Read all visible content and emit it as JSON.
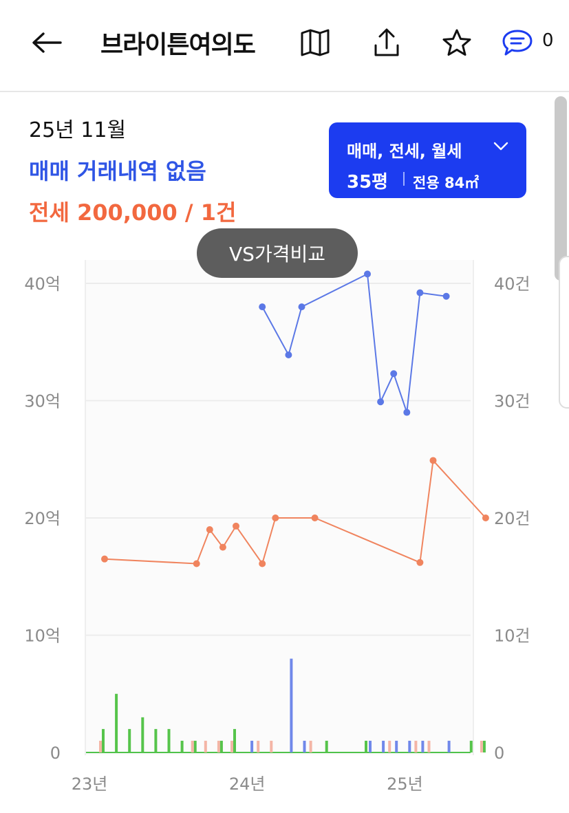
{
  "header": {
    "back_icon": "back-arrow-icon",
    "title": "브라이튼여의도",
    "icons": [
      "map-icon",
      "share-icon",
      "star-icon",
      "comment-icon"
    ],
    "comment_count": "0"
  },
  "summary": {
    "date": "25년 11월",
    "sale_status": "매매 거래내역 없음",
    "rent_line": "전세 200,000 / 1건"
  },
  "filter": {
    "types": "매매, 전세, 월세",
    "size": "35평",
    "area": "전용 84㎡"
  },
  "vs_button": "VS가격비교",
  "colors": {
    "sale": "#5b78e6",
    "jeonse": "#f0845e",
    "wolse": "#56c44b",
    "accent": "#1c3cf0"
  },
  "chart_data": {
    "type": "line",
    "x_ticks": [
      "23년",
      "24년",
      "25년"
    ],
    "y_left_ticks": [
      "0",
      "10억",
      "20억",
      "30억",
      "40억"
    ],
    "y_right_ticks": [
      "0",
      "10건",
      "20건",
      "30건",
      "40건"
    ],
    "y_left_range": [
      0,
      40
    ],
    "y_right_range": [
      0,
      40
    ],
    "series": [
      {
        "key": "sale",
        "points": [
          {
            "x": "2024-01",
            "y": 38.0
          },
          {
            "x": "2024-03",
            "y": 33.9
          },
          {
            "x": "2024-04",
            "y": 38.0
          },
          {
            "x": "2024-09",
            "y": 40.8
          },
          {
            "x": "2024-10",
            "y": 29.9
          },
          {
            "x": "2024-11",
            "y": 32.3
          },
          {
            "x": "2024-12",
            "y": 29.0
          },
          {
            "x": "2025-01",
            "y": 39.2
          },
          {
            "x": "2025-03",
            "y": 38.9
          }
        ]
      },
      {
        "key": "jeonse",
        "points": [
          {
            "x": "2023-01",
            "y": 16.5
          },
          {
            "x": "2023-08",
            "y": 16.1
          },
          {
            "x": "2023-09",
            "y": 19.0
          },
          {
            "x": "2023-10",
            "y": 17.5
          },
          {
            "x": "2023-11",
            "y": 19.3
          },
          {
            "x": "2024-01",
            "y": 16.1
          },
          {
            "x": "2024-02",
            "y": 20.0
          },
          {
            "x": "2024-05",
            "y": 20.0
          },
          {
            "x": "2025-01",
            "y": 16.2
          },
          {
            "x": "2025-02",
            "y": 24.9
          },
          {
            "x": "2025-06",
            "y": 20.0
          }
        ]
      }
    ],
    "volume": [
      {
        "series": "wolse",
        "x": "2023-01",
        "count": 2
      },
      {
        "series": "jeonse",
        "x": "2023-01",
        "count": 1
      },
      {
        "series": "wolse",
        "x": "2023-02",
        "count": 5
      },
      {
        "series": "wolse",
        "x": "2023-03",
        "count": 2
      },
      {
        "series": "wolse",
        "x": "2023-04",
        "count": 3
      },
      {
        "series": "wolse",
        "x": "2023-05",
        "count": 2
      },
      {
        "series": "wolse",
        "x": "2023-06",
        "count": 2
      },
      {
        "series": "wolse",
        "x": "2023-07",
        "count": 1
      },
      {
        "series": "wolse",
        "x": "2023-08",
        "count": 1
      },
      {
        "series": "jeonse",
        "x": "2023-08",
        "count": 1
      },
      {
        "series": "jeonse",
        "x": "2023-09",
        "count": 1
      },
      {
        "series": "jeonse",
        "x": "2023-10",
        "count": 1
      },
      {
        "series": "wolse",
        "x": "2023-10",
        "count": 1
      },
      {
        "series": "wolse",
        "x": "2023-11",
        "count": 2
      },
      {
        "series": "jeonse",
        "x": "2023-11",
        "count": 1
      },
      {
        "series": "sale",
        "x": "2023-12",
        "count": 1
      },
      {
        "series": "jeonse",
        "x": "2024-01",
        "count": 1
      },
      {
        "series": "jeonse",
        "x": "2024-02",
        "count": 1
      },
      {
        "series": "sale",
        "x": "2024-03",
        "count": 8
      },
      {
        "series": "sale",
        "x": "2024-04",
        "count": 1
      },
      {
        "series": "jeonse",
        "x": "2024-05",
        "count": 1
      },
      {
        "series": "wolse",
        "x": "2024-06",
        "count": 1
      },
      {
        "series": "sale",
        "x": "2024-09",
        "count": 1
      },
      {
        "series": "wolse",
        "x": "2024-09",
        "count": 1
      },
      {
        "series": "sale",
        "x": "2024-10",
        "count": 1
      },
      {
        "series": "sale",
        "x": "2024-11",
        "count": 1
      },
      {
        "series": "jeonse",
        "x": "2024-11",
        "count": 1
      },
      {
        "series": "sale",
        "x": "2024-12",
        "count": 1
      },
      {
        "series": "jeonse",
        "x": "2025-01",
        "count": 1
      },
      {
        "series": "sale",
        "x": "2025-01",
        "count": 1
      },
      {
        "series": "jeonse",
        "x": "2025-02",
        "count": 1
      },
      {
        "series": "sale",
        "x": "2025-03",
        "count": 1
      },
      {
        "series": "wolse",
        "x": "2025-05",
        "count": 1
      },
      {
        "series": "wolse",
        "x": "2025-06",
        "count": 1
      },
      {
        "series": "jeonse",
        "x": "2025-06",
        "count": 1
      }
    ],
    "grid": true,
    "legend": "none"
  }
}
